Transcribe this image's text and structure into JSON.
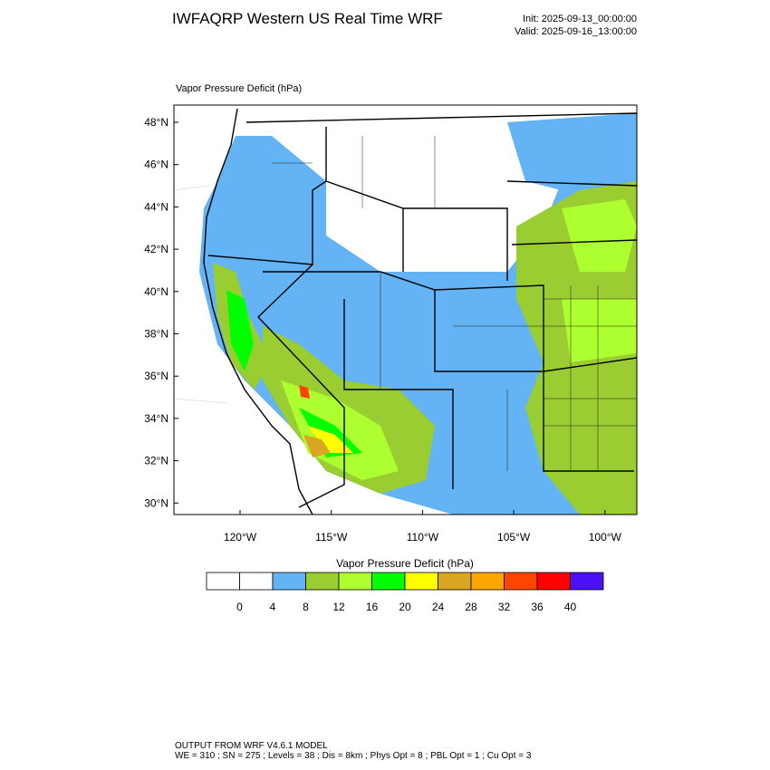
{
  "header": {
    "title": "IWFAQRP Western US Real Time WRF",
    "init": "Init: 2025-09-13_00:00:00",
    "valid": "Valid: 2025-09-16_13:00:00"
  },
  "map": {
    "title": "Vapor Pressure Deficit   (hPa)",
    "lat_labels": [
      "48°N",
      "46°N",
      "44°N",
      "42°N",
      "40°N",
      "38°N",
      "36°N",
      "34°N",
      "32°N",
      "30°N"
    ],
    "lon_labels": [
      "120°W",
      "115°W",
      "110°W",
      "105°W",
      "100°W"
    ]
  },
  "colorbar": {
    "title": "Vapor Pressure Deficit  (hPa)",
    "colors": [
      "#ffffff",
      "#ffffff",
      "#63b3f5",
      "#9acd32",
      "#adff2f",
      "#00ff00",
      "#ffff00",
      "#daa520",
      "#ffa500",
      "#ff4500",
      "#ff0000",
      "#4b10f5"
    ],
    "labels": [
      0,
      4,
      8,
      12,
      16,
      20,
      24,
      28,
      32,
      36,
      40
    ]
  },
  "footer": {
    "line1": "OUTPUT FROM WRF V4.6.1 MODEL",
    "line2": "WE = 310 ; SN = 275 ; Levels = 38 ; Dis = 8km ; Phys Opt = 8 ; PBL Opt = 1 ; Cu Opt = 3"
  }
}
